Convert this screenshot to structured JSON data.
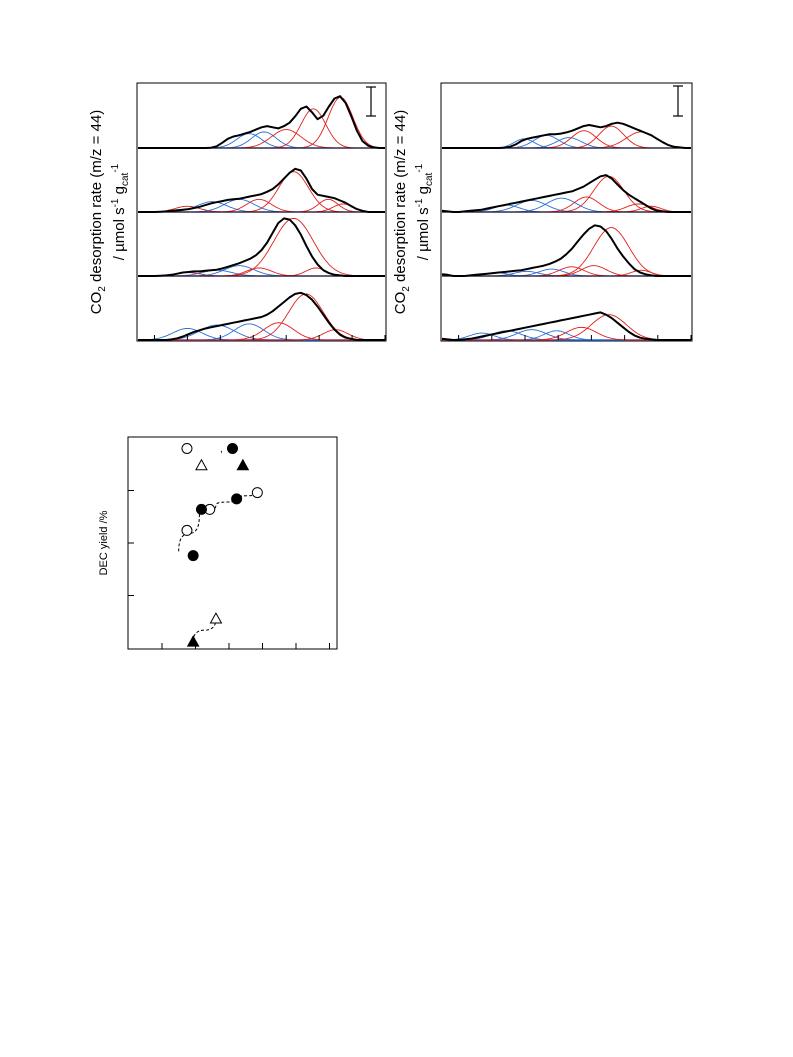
{
  "colors": {
    "total": "#000000",
    "basic_sites": "#2a6fd6",
    "strong_sites": "#e0201b",
    "frame": "#000000"
  },
  "tpd_panels": {
    "ylabel_line1": "CO",
    "ylabel_sub": "2",
    "ylabel_line1_rest": " desorption rate (m/z = 44)",
    "ylabel_line2_prefix": "/ µmol s",
    "ylabel_line2_sup1": "-1",
    "ylabel_line2_g": " g",
    "ylabel_line2_sub": "cat",
    "ylabel_line2_sup2": "-1"
  },
  "yield_panel": {
    "ylabel": "DEC yield /%",
    "comma": ","
  },
  "chart_data": [
    {
      "type": "area",
      "panel": "left",
      "xlim": [
        0,
        100
      ],
      "traces": [
        {
          "total_values": [
            0,
            0,
            0,
            0,
            0,
            0,
            0,
            0,
            0,
            0,
            0,
            0,
            0,
            0.5,
            3,
            9,
            16,
            20,
            22,
            25,
            28,
            32,
            36,
            38,
            36,
            34,
            38,
            44,
            55,
            68,
            72,
            62,
            50,
            56,
            72,
            86,
            90,
            78,
            55,
            30,
            12,
            4,
            1,
            0,
            0
          ],
          "peaks": [
            {
              "kind": "basic",
              "center": 45,
              "height": 25,
              "width": 5
            },
            {
              "kind": "basic",
              "center": 51,
              "height": 28,
              "width": 5
            },
            {
              "kind": "strong",
              "center": 60,
              "height": 32,
              "width": 6
            },
            {
              "kind": "strong",
              "center": 71,
              "height": 68,
              "width": 5
            },
            {
              "kind": "strong",
              "center": 82,
              "height": 88,
              "width": 5
            }
          ]
        },
        {
          "total_values": [
            0,
            0,
            0,
            0,
            0.5,
            1,
            2,
            3,
            4,
            5,
            7,
            9,
            12,
            15,
            17,
            19,
            21,
            22,
            23,
            25,
            27,
            29,
            31,
            35,
            40,
            48,
            58,
            68,
            75,
            72,
            58,
            40,
            30,
            28,
            26,
            24,
            20,
            16,
            10,
            5,
            2,
            0,
            0,
            0,
            0
          ],
          "peaks": [
            {
              "kind": "strong",
              "center": 20,
              "height": 10,
              "width": 5
            },
            {
              "kind": "basic",
              "center": 30,
              "height": 18,
              "width": 6
            },
            {
              "kind": "basic",
              "center": 41,
              "height": 22,
              "width": 6
            },
            {
              "kind": "strong",
              "center": 49,
              "height": 22,
              "width": 5
            },
            {
              "kind": "strong",
              "center": 63,
              "height": 70,
              "width": 6
            },
            {
              "kind": "strong",
              "center": 77,
              "height": 22,
              "width": 4
            },
            {
              "kind": "strong",
              "center": 83,
              "height": 14,
              "width": 4
            }
          ]
        },
        {
          "total_values": [
            0,
            0,
            0,
            0,
            0.5,
            1,
            2,
            4,
            6,
            7,
            8,
            8,
            9,
            10,
            11,
            13,
            16,
            19,
            22,
            26,
            30,
            36,
            45,
            58,
            75,
            92,
            100,
            98,
            88,
            72,
            52,
            34,
            20,
            10,
            5,
            2,
            1,
            0,
            0,
            0,
            0,
            0,
            0,
            0,
            0
          ],
          "peaks": [
            {
              "kind": "strong",
              "center": 20,
              "height": 6,
              "width": 5
            },
            {
              "kind": "basic",
              "center": 32,
              "height": 10,
              "width": 6
            },
            {
              "kind": "basic",
              "center": 41,
              "height": 18,
              "width": 6
            },
            {
              "kind": "strong",
              "center": 49,
              "height": 14,
              "width": 5
            },
            {
              "kind": "strong",
              "center": 63,
              "height": 100,
              "width": 8
            },
            {
              "kind": "strong",
              "center": 72,
              "height": 14,
              "width": 4
            }
          ]
        },
        {
          "total_values": [
            0,
            0,
            0,
            0,
            0,
            0,
            1,
            3,
            6,
            10,
            14,
            17,
            20,
            22,
            24,
            26,
            28,
            30,
            32,
            34,
            36,
            38,
            40,
            44,
            50,
            58,
            66,
            74,
            80,
            82,
            78,
            70,
            58,
            44,
            30,
            18,
            9,
            4,
            2,
            0,
            0,
            0,
            0,
            0,
            0
          ],
          "peaks": [
            {
              "kind": "basic",
              "center": 20,
              "height": 20,
              "width": 6
            },
            {
              "kind": "basic",
              "center": 32,
              "height": 26,
              "width": 7
            },
            {
              "kind": "basic",
              "center": 45,
              "height": 28,
              "width": 6
            },
            {
              "kind": "strong",
              "center": 57,
              "height": 30,
              "width": 6
            },
            {
              "kind": "strong",
              "center": 68,
              "height": 80,
              "width": 7
            },
            {
              "kind": "strong",
              "center": 80,
              "height": 18,
              "width": 5
            }
          ]
        }
      ]
    },
    {
      "type": "area",
      "panel": "right",
      "xlim": [
        0,
        100
      ],
      "traces": [
        {
          "total_values": [
            0,
            0,
            0,
            0,
            0,
            0,
            0,
            0,
            0,
            0,
            0,
            0.5,
            2,
            6,
            12,
            16,
            18,
            20,
            22,
            24,
            24,
            25,
            27,
            30,
            34,
            38,
            40,
            38,
            36,
            38,
            42,
            44,
            42,
            38,
            34,
            30,
            26,
            22,
            16,
            10,
            5,
            2,
            1,
            0,
            0
          ],
          "peaks": [
            {
              "kind": "basic",
              "center": 33,
              "height": 16,
              "width": 4
            },
            {
              "kind": "basic",
              "center": 42,
              "height": 22,
              "width": 5
            },
            {
              "kind": "basic",
              "center": 51,
              "height": 18,
              "width": 5
            },
            {
              "kind": "strong",
              "center": 57,
              "height": 30,
              "width": 5
            },
            {
              "kind": "strong",
              "center": 68,
              "height": 38,
              "width": 5
            },
            {
              "kind": "strong",
              "center": 80,
              "height": 28,
              "width": 6
            }
          ]
        },
        {
          "total_values": [
            2,
            1,
            0,
            0,
            1,
            2,
            3,
            4,
            6,
            8,
            10,
            12,
            14,
            16,
            18,
            20,
            22,
            24,
            26,
            28,
            30,
            32,
            34,
            36,
            40,
            44,
            50,
            56,
            62,
            64,
            58,
            48,
            38,
            30,
            24,
            18,
            12,
            6,
            2,
            1,
            0,
            0,
            0,
            0,
            0
          ],
          "peaks": [
            {
              "kind": "basic",
              "center": 26,
              "height": 12,
              "width": 5
            },
            {
              "kind": "basic",
              "center": 36,
              "height": 20,
              "width": 6
            },
            {
              "kind": "basic",
              "center": 48,
              "height": 24,
              "width": 6
            },
            {
              "kind": "strong",
              "center": 58,
              "height": 26,
              "width": 5
            },
            {
              "kind": "strong",
              "center": 67,
              "height": 62,
              "width": 6
            },
            {
              "kind": "strong",
              "center": 79,
              "height": 14,
              "width": 5
            },
            {
              "kind": "strong",
              "center": 84,
              "height": 10,
              "width": 4
            }
          ]
        },
        {
          "total_values": [
            3,
            2,
            0,
            0,
            0,
            1,
            2,
            3,
            4,
            5,
            6,
            7,
            8,
            9,
            10,
            12,
            14,
            16,
            18,
            21,
            25,
            30,
            38,
            48,
            60,
            72,
            82,
            88,
            86,
            78,
            64,
            48,
            34,
            22,
            12,
            6,
            3,
            1,
            0,
            0,
            0,
            0,
            0,
            0,
            0
          ],
          "peaks": [
            {
              "kind": "basic",
              "center": 22,
              "height": 6,
              "width": 4
            },
            {
              "kind": "basic",
              "center": 34,
              "height": 8,
              "width": 5
            },
            {
              "kind": "basic",
              "center": 44,
              "height": 12,
              "width": 5
            },
            {
              "kind": "strong",
              "center": 52,
              "height": 16,
              "width": 5
            },
            {
              "kind": "strong",
              "center": 61,
              "height": 18,
              "width": 5
            },
            {
              "kind": "strong",
              "center": 68,
              "height": 84,
              "width": 7
            },
            {
              "kind": "strong",
              "center": 80,
              "height": 10,
              "width": 4
            }
          ]
        },
        {
          "total_values": [
            2,
            1,
            0,
            0,
            1,
            2,
            4,
            6,
            8,
            10,
            12,
            14,
            16,
            18,
            20,
            22,
            24,
            26,
            28,
            30,
            32,
            34,
            36,
            38,
            40,
            42,
            44,
            46,
            48,
            44,
            38,
            30,
            22,
            14,
            8,
            4,
            2,
            1,
            0,
            0,
            0,
            0,
            0,
            0,
            0
          ],
          "peaks": [
            {
              "kind": "basic",
              "center": 16,
              "height": 12,
              "width": 5
            },
            {
              "kind": "basic",
              "center": 26,
              "height": 16,
              "width": 6
            },
            {
              "kind": "basic",
              "center": 36,
              "height": 18,
              "width": 6
            },
            {
              "kind": "basic",
              "center": 46,
              "height": 16,
              "width": 5
            },
            {
              "kind": "strong",
              "center": 56,
              "height": 22,
              "width": 6
            },
            {
              "kind": "strong",
              "center": 67,
              "height": 44,
              "width": 7
            }
          ]
        }
      ]
    },
    {
      "type": "scatter",
      "panel": "yield",
      "xlim": [
        0,
        100
      ],
      "ylim": [
        0,
        100
      ],
      "points": [
        {
          "x": 28,
          "y": 95,
          "marker": "circle-open"
        },
        {
          "x": 50,
          "y": 95,
          "marker": "circle-filled"
        },
        {
          "x": 35,
          "y": 87,
          "marker": "triangle-open"
        },
        {
          "x": 55,
          "y": 87,
          "marker": "triangle-filled"
        },
        {
          "x": 62,
          "y": 74,
          "marker": "circle-open"
        },
        {
          "x": 52,
          "y": 71,
          "marker": "circle-filled"
        },
        {
          "x": 39,
          "y": 66,
          "marker": "circle-open"
        },
        {
          "x": 35,
          "y": 66,
          "marker": "circle-filled"
        },
        {
          "x": 28,
          "y": 56,
          "marker": "circle-open"
        },
        {
          "x": 31,
          "y": 44,
          "marker": "circle-filled"
        },
        {
          "x": 42,
          "y": 14,
          "marker": "triangle-open"
        },
        {
          "x": 31,
          "y": 3,
          "marker": "triangle-filled"
        }
      ],
      "guides": [
        {
          "points": [
            [
              24,
              46
            ],
            [
              34,
              63
            ],
            [
              42,
              68
            ],
            [
              52,
              71
            ],
            [
              62,
              74
            ]
          ]
        },
        {
          "points": [
            [
              31,
              3
            ],
            [
              42,
              14
            ]
          ]
        }
      ]
    }
  ]
}
